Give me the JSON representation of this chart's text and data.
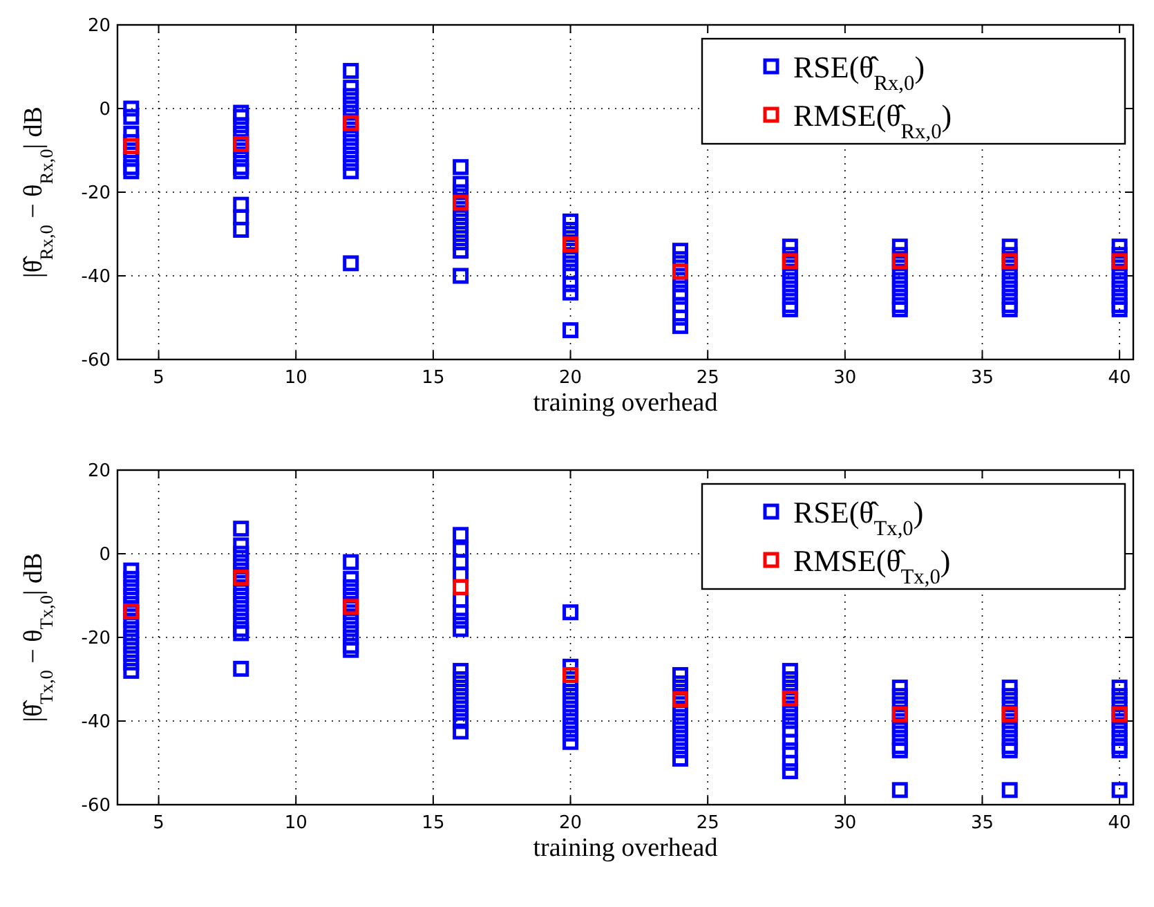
{
  "chart_data": [
    {
      "type": "scatter",
      "xlabel": "training overhead",
      "ylabel": "|θ̂$_{Rx,0}$ − θ$_{Rx,0}$| dB",
      "xlim": [
        3.5,
        40.5
      ],
      "ylim": [
        -60,
        20
      ],
      "xticks": [
        5,
        10,
        15,
        20,
        25,
        30,
        35,
        40
      ],
      "yticks": [
        -60,
        -40,
        -20,
        0,
        20
      ],
      "grid": true,
      "legend": "top right",
      "marker": "square",
      "series": [
        {
          "name": "RSE(θ̂$_{Rx,0}$)",
          "color": "#0000ff",
          "x": [
            4,
            4,
            4,
            4,
            4,
            4,
            4,
            4,
            8,
            8,
            8,
            8,
            8,
            8,
            8,
            8,
            8,
            8,
            8,
            8,
            12,
            12,
            12,
            12,
            12,
            12,
            12,
            12,
            12,
            12,
            12,
            12,
            12,
            16,
            16,
            16,
            16,
            16,
            16,
            16,
            16,
            16,
            16,
            16,
            20,
            20,
            20,
            20,
            20,
            20,
            20,
            20,
            20,
            20,
            24,
            24,
            24,
            24,
            24,
            24,
            24,
            24,
            24,
            24,
            28,
            28,
            28,
            28,
            28,
            28,
            28,
            28,
            28,
            32,
            32,
            32,
            32,
            32,
            32,
            32,
            32,
            32,
            36,
            36,
            36,
            36,
            36,
            36,
            36,
            36,
            36,
            40,
            40,
            40,
            40,
            40,
            40,
            40,
            40,
            40
          ],
          "values": [
            0,
            -2,
            -6,
            -8,
            -10,
            -12,
            -14,
            -15,
            -1,
            -2,
            -4,
            -6,
            -8,
            -10,
            -12,
            -14,
            -15,
            -23,
            -26,
            -29,
            9,
            5,
            3,
            1,
            -1,
            -3,
            -5,
            -7,
            -9,
            -11,
            -13,
            -15,
            -37,
            -14,
            -18,
            -20,
            -22,
            -24,
            -26,
            -28,
            -30,
            -32,
            -34,
            -40,
            -27,
            -29,
            -31,
            -33,
            -35,
            -37,
            -39,
            -42,
            -44,
            -53,
            -34,
            -36,
            -38,
            -40,
            -42,
            -44,
            -45,
            -47,
            -50,
            -52,
            -33,
            -35,
            -37,
            -39,
            -41,
            -43,
            -45,
            -47,
            -48,
            -33,
            -35,
            -37,
            -39,
            -41,
            -43,
            -45,
            -47,
            -48,
            -33,
            -35,
            -37,
            -39,
            -41,
            -43,
            -45,
            -47,
            -48,
            -33,
            -35,
            -37,
            -39,
            -41,
            -43,
            -45,
            -47,
            -48
          ]
        },
        {
          "name": "RMSE(θ̂$_{Rx,0}$)",
          "color": "#ff0000",
          "x": [
            4,
            8,
            12,
            16,
            20,
            24,
            28,
            32,
            36,
            40
          ],
          "values": [
            -9,
            -8.5,
            -3.5,
            -22.5,
            -32.5,
            -39,
            -36.5,
            -36.5,
            -36.5,
            -36.5
          ]
        }
      ]
    },
    {
      "type": "scatter",
      "xlabel": "training overhead",
      "ylabel": "|θ̂$_{Tx,0}$ − θ$_{Tx,0}$| dB",
      "xlim": [
        3.5,
        40.5
      ],
      "ylim": [
        -60,
        20
      ],
      "xticks": [
        5,
        10,
        15,
        20,
        25,
        30,
        35,
        40
      ],
      "yticks": [
        -60,
        -40,
        -20,
        0,
        20
      ],
      "grid": true,
      "legend": "top right",
      "marker": "square",
      "series": [
        {
          "name": "RSE(θ̂$_{Tx,0}$)",
          "color": "#0000ff",
          "x": [
            4,
            4,
            4,
            4,
            4,
            4,
            4,
            4,
            4,
            4,
            4,
            4,
            4,
            8,
            8,
            8,
            8,
            8,
            8,
            8,
            8,
            8,
            8,
            8,
            8,
            8,
            8,
            12,
            12,
            12,
            12,
            12,
            12,
            12,
            12,
            12,
            12,
            12,
            16,
            16,
            16,
            16,
            16,
            16,
            16,
            16,
            16,
            16,
            16,
            16,
            16,
            16,
            16,
            16,
            20,
            20,
            20,
            20,
            20,
            20,
            20,
            20,
            20,
            20,
            20,
            24,
            24,
            24,
            24,
            24,
            24,
            24,
            24,
            24,
            24,
            24,
            28,
            28,
            28,
            28,
            28,
            28,
            28,
            28,
            28,
            28,
            28,
            28,
            32,
            32,
            32,
            32,
            32,
            32,
            32,
            32,
            32,
            32,
            36,
            36,
            36,
            36,
            36,
            36,
            36,
            36,
            36,
            36,
            40,
            40,
            40,
            40,
            40,
            40,
            40,
            40,
            40,
            40
          ],
          "values": [
            -4,
            -6,
            -8,
            -10,
            -12,
            -14,
            -16,
            -18,
            -20,
            -22,
            -24,
            -26,
            -28,
            6,
            2,
            0,
            -2,
            -4,
            -6,
            -8,
            -10,
            -12,
            -14,
            -16,
            -18,
            -19,
            -27.5,
            -2,
            -6,
            -8,
            -10,
            -12,
            -14,
            -16,
            -18,
            -20,
            -22,
            -23,
            4.5,
            1,
            -2,
            -5,
            -11,
            -14,
            -16,
            -18,
            -28,
            -30,
            -32,
            -34,
            -36,
            -38,
            -40,
            -42.5,
            -14,
            -27,
            -29,
            -31,
            -33,
            -35,
            -37,
            -39,
            -41,
            -43,
            -45,
            -29,
            -31,
            -33,
            -35,
            -37,
            -39,
            -41,
            -43,
            -45,
            -47,
            -49,
            -28,
            -30,
            -32,
            -34,
            -36,
            -38,
            -40,
            -42,
            -45,
            -47,
            -50,
            -52,
            -32,
            -34,
            -36,
            -38,
            -40,
            -42,
            -44,
            -46,
            -47,
            -56.5,
            -32,
            -34,
            -36,
            -38,
            -40,
            -42,
            -44,
            -46,
            -47,
            -56.5,
            -32,
            -34,
            -36,
            -38,
            -40,
            -42,
            -44,
            -46,
            -47,
            -56.5
          ]
        },
        {
          "name": "RMSE(θ̂$_{Tx,0}$)",
          "color": "#ff0000",
          "x": [
            4,
            8,
            12,
            16,
            20,
            24,
            28,
            32,
            36,
            40
          ],
          "values": [
            -13.8,
            -5.7,
            -12.7,
            -8,
            -29,
            -34.8,
            -34.6,
            -38.4,
            -38.4,
            -38.4
          ]
        }
      ]
    }
  ]
}
